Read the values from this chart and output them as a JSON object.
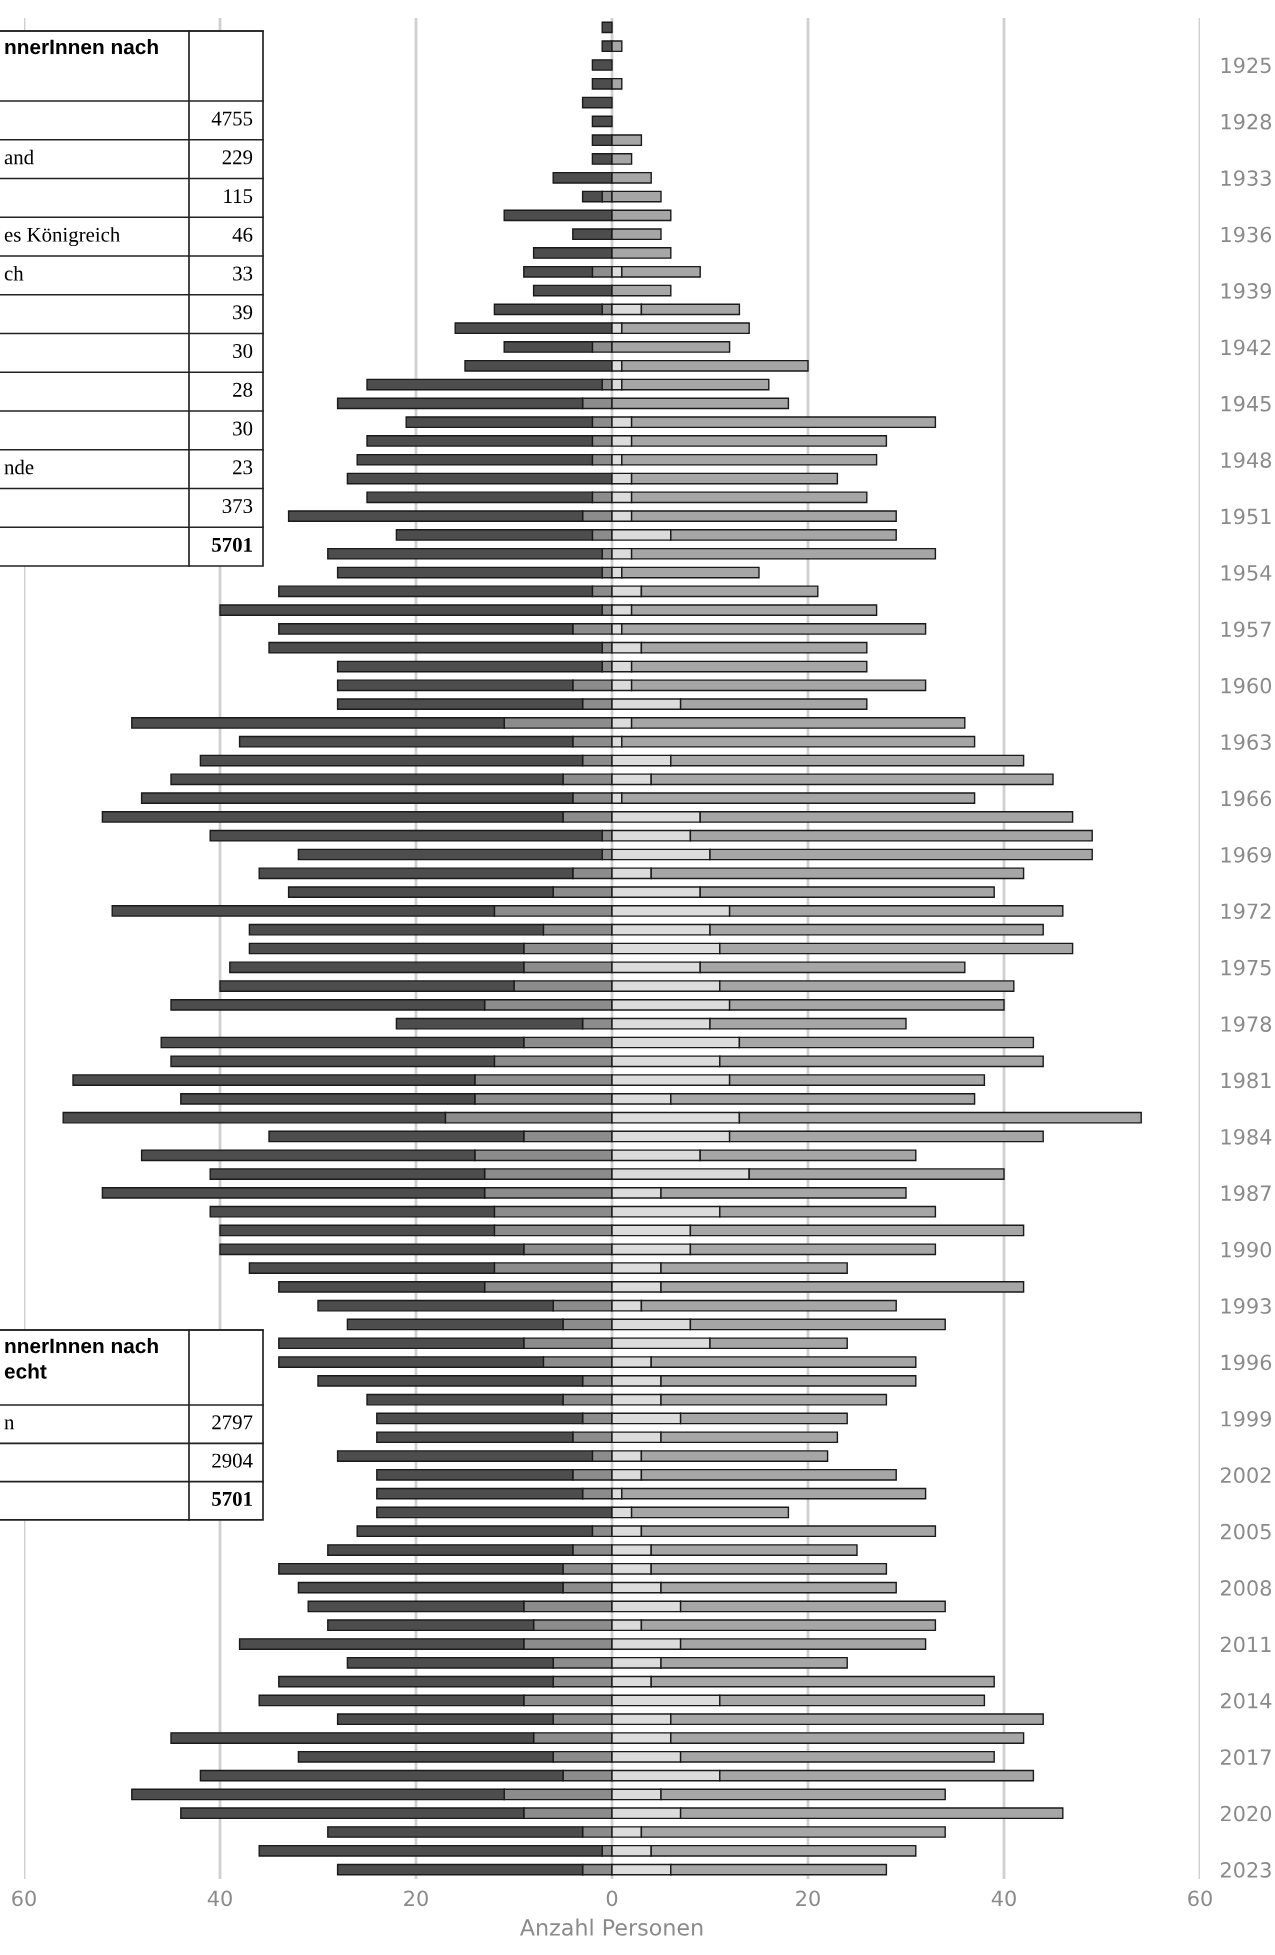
{
  "chart_data": {
    "type": "bar",
    "orientation": "horizontal",
    "stacked": true,
    "categories": [
      null,
      null,
      "1925",
      null,
      null,
      "1928",
      null,
      null,
      "1933",
      null,
      null,
      "1936",
      null,
      null,
      "1939",
      null,
      null,
      "1942",
      null,
      null,
      "1945",
      null,
      null,
      "1948",
      null,
      null,
      "1951",
      null,
      null,
      "1954",
      null,
      null,
      "1957",
      null,
      null,
      "1960",
      null,
      null,
      "1963",
      null,
      null,
      "1966",
      null,
      null,
      "1969",
      null,
      null,
      "1972",
      null,
      null,
      "1975",
      null,
      null,
      "1978",
      null,
      null,
      "1981",
      null,
      null,
      "1984",
      null,
      null,
      "1987",
      null,
      null,
      "1990",
      null,
      null,
      "1993",
      null,
      null,
      "1996",
      null,
      null,
      "1999",
      null,
      null,
      "2002",
      null,
      null,
      "2005",
      null,
      null,
      "2008",
      null,
      null,
      "2011",
      null,
      null,
      "2014",
      null,
      null,
      "2017",
      null,
      null,
      "2020",
      null,
      null,
      "2023"
    ],
    "series": [
      {
        "color": "#8c8c8c",
        "values": [
          0,
          0,
          0,
          0,
          0,
          0,
          0,
          0,
          0,
          -1,
          0,
          0,
          0,
          -2,
          0,
          -1,
          0,
          -2,
          0,
          -1,
          -3,
          -2,
          -2,
          -2,
          0,
          -2,
          -3,
          -2,
          -1,
          -1,
          -2,
          -1,
          -4,
          -1,
          -1,
          -4,
          -3,
          -11,
          -4,
          -3,
          -5,
          -4,
          -5,
          -1,
          -1,
          -4,
          -6,
          -12,
          -7,
          -9,
          -9,
          -10,
          -13,
          -3,
          -9,
          -12,
          -14,
          -14,
          -17,
          -9,
          -14,
          -13,
          -13,
          -12,
          -12,
          -9,
          -12,
          -13,
          -6,
          -5,
          -9,
          -7,
          -3,
          -5,
          -3,
          -4,
          -2,
          -4,
          -3,
          0,
          -2,
          -4,
          -5,
          -5,
          -9,
          -8,
          -9,
          -6,
          -6,
          -9,
          -6,
          -8,
          -6,
          -5,
          -11,
          -9,
          -3,
          -1,
          -3
        ]
      },
      {
        "color": "#4d4d4d",
        "values": [
          -1,
          -1,
          -2,
          -2,
          -3,
          -2,
          -2,
          -2,
          -6,
          -2,
          -11,
          -4,
          -8,
          -7,
          -8,
          -11,
          -16,
          -9,
          -15,
          -24,
          -25,
          -19,
          -23,
          -24,
          -27,
          -23,
          -30,
          -20,
          -28,
          -27,
          -32,
          -39,
          -30,
          -34,
          -27,
          -24,
          -25,
          -38,
          -34,
          -39,
          -40,
          -44,
          -47,
          -40,
          -31,
          -32,
          -27,
          -39,
          -30,
          -28,
          -30,
          -30,
          -32,
          -19,
          -37,
          -33,
          -41,
          -30,
          -39,
          -26,
          -34,
          -28,
          -39,
          -29,
          -28,
          -31,
          -25,
          -21,
          -24,
          -22,
          -25,
          -27,
          -27,
          -20,
          -21,
          -20,
          -26,
          -20,
          -21,
          -24,
          -24,
          -25,
          -29,
          -27,
          -22,
          -21,
          -29,
          -21,
          -28,
          -27,
          -22,
          -37,
          -26,
          -37,
          -38,
          -35,
          -26,
          -35,
          -25
        ]
      },
      {
        "color": "#dcdcdc",
        "values": [
          0,
          0,
          0,
          0,
          0,
          0,
          0,
          0,
          0,
          0,
          0,
          0,
          0,
          1,
          0,
          3,
          1,
          0,
          1,
          1,
          0,
          2,
          2,
          1,
          2,
          2,
          2,
          6,
          2,
          1,
          3,
          2,
          1,
          3,
          2,
          2,
          7,
          2,
          1,
          6,
          4,
          1,
          9,
          8,
          10,
          4,
          9,
          12,
          10,
          11,
          9,
          11,
          12,
          10,
          13,
          11,
          12,
          6,
          13,
          12,
          9,
          14,
          5,
          11,
          8,
          8,
          5,
          5,
          3,
          8,
          10,
          4,
          5,
          5,
          7,
          5,
          3,
          3,
          1,
          2,
          3,
          4,
          4,
          5,
          7,
          3,
          7,
          5,
          4,
          11,
          6,
          6,
          7,
          11,
          5,
          7,
          3,
          4,
          6
        ]
      },
      {
        "color": "#a6a6a6",
        "values": [
          0,
          1,
          0,
          1,
          0,
          0,
          3,
          2,
          4,
          5,
          6,
          5,
          6,
          8,
          6,
          10,
          13,
          12,
          19,
          15,
          18,
          31,
          26,
          26,
          21,
          24,
          27,
          23,
          31,
          14,
          18,
          25,
          31,
          23,
          24,
          30,
          19,
          34,
          36,
          36,
          41,
          36,
          38,
          41,
          39,
          38,
          30,
          34,
          34,
          36,
          27,
          30,
          28,
          20,
          30,
          33,
          26,
          31,
          41,
          32,
          22,
          26,
          25,
          22,
          34,
          25,
          19,
          37,
          26,
          26,
          14,
          27,
          26,
          23,
          17,
          18,
          19,
          26,
          31,
          16,
          30,
          21,
          24,
          24,
          27,
          30,
          25,
          19,
          35,
          27,
          38,
          36,
          32,
          32,
          29,
          39,
          31,
          27,
          22
        ]
      }
    ],
    "xlim": [
      -60,
      60
    ],
    "xticks": [
      {
        "value": -60,
        "label": "60"
      },
      {
        "value": -40,
        "label": "40"
      },
      {
        "value": -20,
        "label": "20"
      },
      0,
      20,
      40,
      60
    ],
    "xlabel": "Anzahl Personen",
    "grid": "x",
    "annotations": [
      "nnerInnen nach",
      "4755",
      "and",
      "229",
      "115",
      "es Königreich",
      "46",
      "ch",
      "33",
      "39",
      "30",
      "28",
      "30",
      "nde",
      "23",
      "373",
      "5701",
      "nnerInnen nach\necht",
      "n",
      "2797",
      "2904",
      "5701"
    ]
  }
}
